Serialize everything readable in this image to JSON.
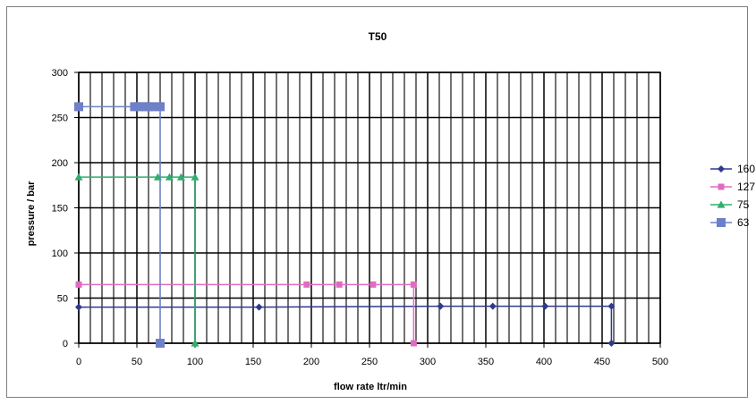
{
  "chart_data": {
    "type": "line",
    "title": "T50",
    "xlabel": "flow rate ltr/min",
    "ylabel": "pressure / bar",
    "xlim": [
      0,
      500
    ],
    "ylim": [
      0,
      300
    ],
    "x_ticks": [
      0,
      50,
      100,
      150,
      200,
      250,
      300,
      350,
      400,
      450,
      500
    ],
    "y_ticks": [
      0,
      50,
      100,
      150,
      200,
      250,
      300
    ],
    "x_minor_step": 10,
    "grid": true,
    "legend_position": "right",
    "series": [
      {
        "name": "160",
        "color": "#2e3a8c",
        "marker": "diamond",
        "x": [
          0,
          155,
          311,
          356,
          401,
          458,
          458
        ],
        "y": [
          40,
          40,
          41,
          41,
          41,
          41,
          0
        ]
      },
      {
        "name": "127",
        "color": "#e06cc0",
        "marker": "square",
        "x": [
          0,
          196,
          224,
          253,
          288,
          288
        ],
        "y": [
          65,
          65,
          65,
          65,
          65,
          0
        ]
      },
      {
        "name": "75",
        "color": "#2fae6e",
        "marker": "triangle",
        "x": [
          0,
          68,
          78,
          88,
          100,
          100
        ],
        "y": [
          184,
          184,
          184,
          184,
          184,
          0
        ]
      },
      {
        "name": "63",
        "color": "#6e80c8",
        "marker": "square-large",
        "x": [
          0,
          48,
          52,
          56,
          60,
          64,
          70,
          70
        ],
        "y": [
          262,
          262,
          262,
          262,
          262,
          262,
          262,
          0
        ]
      }
    ]
  }
}
